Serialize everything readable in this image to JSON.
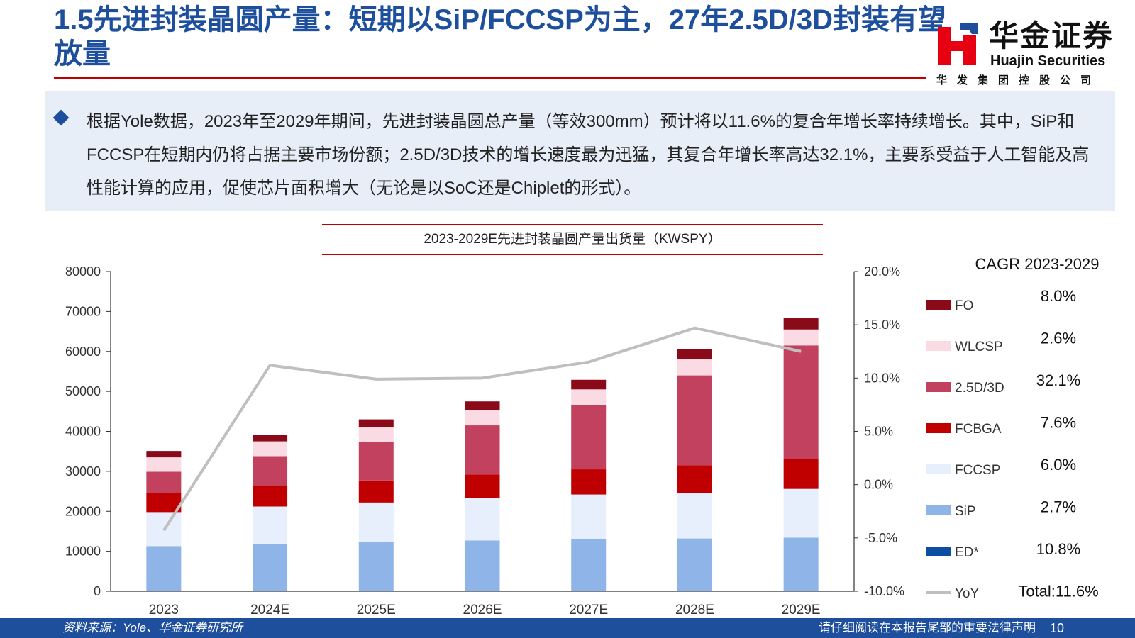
{
  "header": {
    "title": "1.5先进封装晶圆产量：短期以SiP/FCCSP为主，27年2.5D/3D封装有望放量"
  },
  "logo": {
    "name_cn": "华金证券",
    "name_en": "Huajin Securities",
    "subtitle": "华发集团控股公司",
    "colors": {
      "red": "#e60012",
      "blue": "#1e4f9c"
    }
  },
  "summary": {
    "text": "根据Yole数据，2023年至2029年期间，先进封装晶圆总产量（等效300mm）预计将以11.6%的复合年增长率持续增长。其中，SiP和FCCSP在短期内仍将占据主要市场份额；2.5D/3D技术的增长速度最为迅猛，其复合年增长率高达32.1%，主要系受益于人工智能及高性能计算的应用，促使芯片面积增大（无论是以SoC还是Chiplet的形式）。"
  },
  "chart_data": {
    "type": "bar",
    "stacked": true,
    "title": "2023-2029E先进封装晶圆产量出货量（KWSPY）",
    "categories": [
      "2023",
      "2024E",
      "2025E",
      "2026E",
      "2027E",
      "2028E",
      "2029E"
    ],
    "series": [
      {
        "name": "ED*",
        "color": "#0b4ea2",
        "values": [
          100,
          100,
          100,
          100,
          100,
          100,
          100
        ]
      },
      {
        "name": "SiP",
        "color": "#8eb4e8",
        "values": [
          11200,
          11800,
          12200,
          12600,
          13000,
          13100,
          13300
        ]
      },
      {
        "name": "FCCSP",
        "color": "#e6effb",
        "values": [
          8500,
          9300,
          9900,
          10600,
          11100,
          11400,
          12200
        ]
      },
      {
        "name": "FCBGA",
        "color": "#c00000",
        "values": [
          4800,
          5300,
          5500,
          5900,
          6300,
          6900,
          7400
        ]
      },
      {
        "name": "2.5D/3D",
        "color": "#c1415f",
        "values": [
          5300,
          7300,
          9600,
          12300,
          16100,
          22500,
          28500
        ]
      },
      {
        "name": "WLCSP",
        "color": "#fadbe4",
        "values": [
          3600,
          3700,
          3800,
          3800,
          3900,
          4000,
          4000
        ]
      },
      {
        "name": "FO",
        "color": "#8b0a1a",
        "values": [
          1600,
          1700,
          1900,
          2200,
          2400,
          2600,
          2800
        ]
      }
    ],
    "line": {
      "name": "YoY",
      "color": "#bfbfbf",
      "axis": "right",
      "values": [
        -4.3,
        11.2,
        9.9,
        10.0,
        11.5,
        14.7,
        12.5
      ]
    },
    "legend_order": [
      "FO",
      "WLCSP",
      "2.5D/3D",
      "FCBGA",
      "FCCSP",
      "SiP",
      "ED*",
      "YoY"
    ],
    "yleft": {
      "min": 0,
      "max": 80000,
      "step": 10000,
      "ticks": [
        "0",
        "10000",
        "20000",
        "30000",
        "40000",
        "50000",
        "60000",
        "70000",
        "80000"
      ]
    },
    "yright": {
      "min": -10,
      "max": 20,
      "step": 5,
      "ticks": [
        "-10.0%",
        "-5.0%",
        "0.0%",
        "5.0%",
        "10.0%",
        "15.0%",
        "20.0%"
      ]
    },
    "cagr": {
      "header": "CAGR 2023-2029",
      "values": [
        "8.0%",
        "2.6%",
        "32.1%",
        "7.6%",
        "6.0%",
        "2.7%",
        "10.8%",
        "Total:11.6%"
      ]
    },
    "legend_placement": "right",
    "grid": false
  },
  "footer": {
    "source": "资料来源：Yole、华金证券研究所",
    "disclaimer": "请仔细阅读在本报告尾部的重要法律声明",
    "page": "10"
  }
}
